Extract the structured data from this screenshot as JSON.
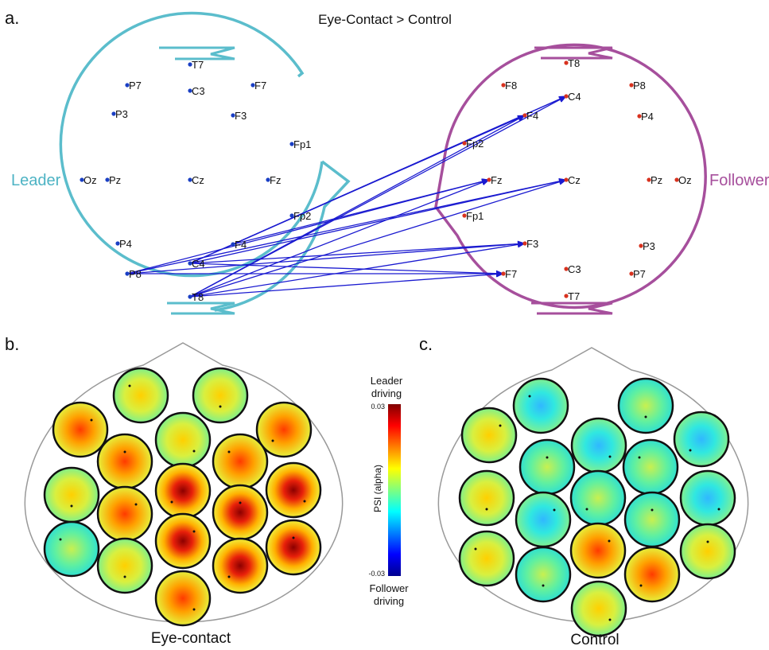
{
  "panel_a": {
    "label": "a.",
    "title": "Eye-Contact > Control",
    "leader_label": "Leader",
    "follower_label": "Follower",
    "leader_color": "#5bbdcc",
    "follower_color": "#a64f9c",
    "leader_dot_color": "#1a3fc4",
    "follower_dot_color": "#d8321f",
    "arrow_color": "#1a1ad0",
    "leader_electrodes": [
      "T7",
      "P7",
      "C3",
      "F7",
      "P3",
      "F3",
      "Fp1",
      "Oz",
      "Pz",
      "Cz",
      "Fz",
      "Fp2",
      "P4",
      "F4",
      "P8",
      "C4",
      "T8"
    ],
    "follower_electrodes": [
      "T8",
      "F8",
      "P8",
      "C4",
      "F4",
      "P4",
      "Fp2",
      "Fz",
      "Cz",
      "Pz",
      "Oz",
      "Fp1",
      "F3",
      "P3",
      "F7",
      "C3",
      "P7",
      "T7"
    ],
    "connections": [
      {
        "from": "P8",
        "to": "Fz"
      },
      {
        "from": "P8",
        "to": "Cz"
      },
      {
        "from": "P8",
        "to": "F3"
      },
      {
        "from": "P8",
        "to": "F7"
      },
      {
        "from": "T8",
        "to": "C4"
      },
      {
        "from": "T8",
        "to": "F4"
      },
      {
        "from": "T8",
        "to": "Fz"
      },
      {
        "from": "T8",
        "to": "Cz"
      },
      {
        "from": "T8",
        "to": "F3"
      },
      {
        "from": "T8",
        "to": "F7"
      },
      {
        "from": "C4",
        "to": "F4"
      },
      {
        "from": "C4",
        "to": "C4"
      },
      {
        "from": "C4",
        "to": "Cz"
      },
      {
        "from": "C4",
        "to": "F3"
      },
      {
        "from": "C4",
        "to": "F7"
      },
      {
        "from": "F4",
        "to": "Fz"
      },
      {
        "from": "F4",
        "to": "C4"
      }
    ]
  },
  "panel_b": {
    "label": "b.",
    "caption": "Eye-contact"
  },
  "panel_c": {
    "label": "c.",
    "caption": "Control"
  },
  "colorbar": {
    "top_label_line1": "Leader",
    "top_label_line2": "driving",
    "bottom_label_line1": "Follower",
    "bottom_label_line2": "driving",
    "max_label": "0.03",
    "min_label": "-0.03",
    "axis_label": "PSI (alpha)"
  }
}
